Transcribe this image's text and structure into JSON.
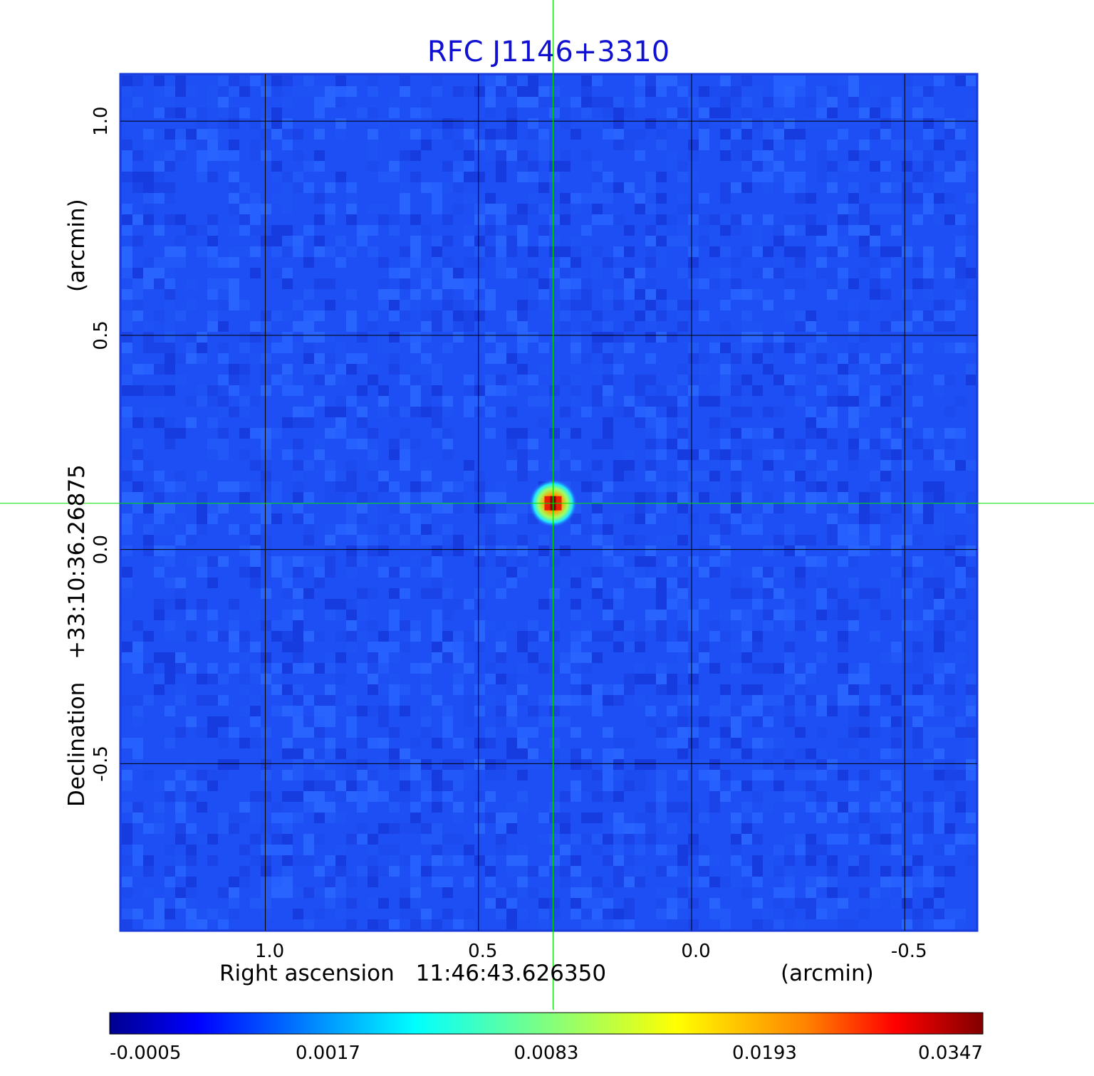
{
  "chart_data": {
    "type": "heatmap",
    "title": "RFC J1146+3310",
    "xlabel": {
      "name": "Right ascension",
      "center": "11:46:43.626350",
      "unit": "(arcmin)"
    },
    "ylabel": {
      "name": "Declination",
      "center": "+33:10:36.26875",
      "unit": "(arcmin)"
    },
    "x_axis": {
      "reversed": true,
      "range": [
        1.34,
        -0.67
      ],
      "ticks": [
        1.0,
        0.5,
        0.0,
        -0.5
      ],
      "tick_labels": [
        "1.0",
        "0.5",
        "0.0",
        "-0.5"
      ]
    },
    "y_axis": {
      "range": [
        -0.89,
        1.11
      ],
      "ticks": [
        1.0,
        0.5,
        0.0,
        -0.5
      ],
      "tick_labels": [
        "1.0",
        "0.5",
        "0.0",
        "-0.5"
      ]
    },
    "grid": true,
    "grid_color": "#000000",
    "crosshair": {
      "x": 0.325,
      "y": 0.108,
      "color": "#00e000"
    },
    "source": {
      "x": 0.325,
      "y": 0.108,
      "peak": 0.0347
    },
    "colormap": "jet",
    "colorbar": {
      "position": "bottom",
      "tick_labels": [
        "-0.0005",
        "0.0017",
        "0.0083",
        "0.0193",
        "0.0347"
      ],
      "colors": [
        "#00008f",
        "#0000ff",
        "#00ffff",
        "#80ff80",
        "#ffff00",
        "#ff8000",
        "#ff0000",
        "#800000"
      ]
    },
    "background_level": "#1e4ff5"
  }
}
